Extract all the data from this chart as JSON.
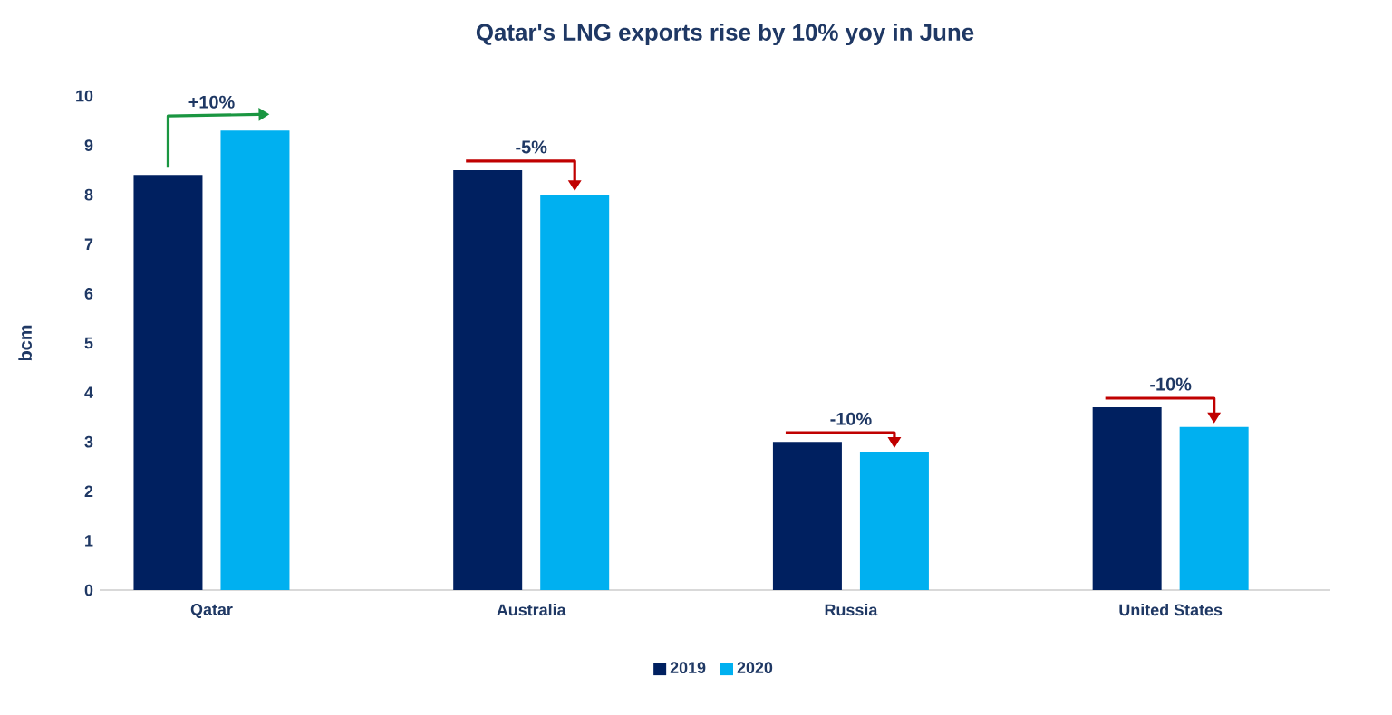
{
  "chart_data": {
    "type": "bar",
    "title": "Qatar's LNG exports rise by 10% yoy in June",
    "ylabel": "bcm",
    "categories": [
      "Qatar",
      "Australia",
      "Russia",
      "United States"
    ],
    "series": [
      {
        "name": "2019",
        "color": "#002060",
        "values": [
          8.4,
          8.5,
          3.0,
          3.7
        ]
      },
      {
        "name": "2020",
        "color": "#00b0f0",
        "values": [
          9.3,
          8.0,
          2.8,
          3.3
        ]
      }
    ],
    "ylim": [
      0,
      10
    ],
    "yticks": [
      0,
      1,
      2,
      3,
      4,
      5,
      6,
      7,
      8,
      9,
      10
    ],
    "legend": "bottom",
    "annotations": [
      "+10%",
      "-5%",
      "-10%",
      "-10%"
    ]
  }
}
